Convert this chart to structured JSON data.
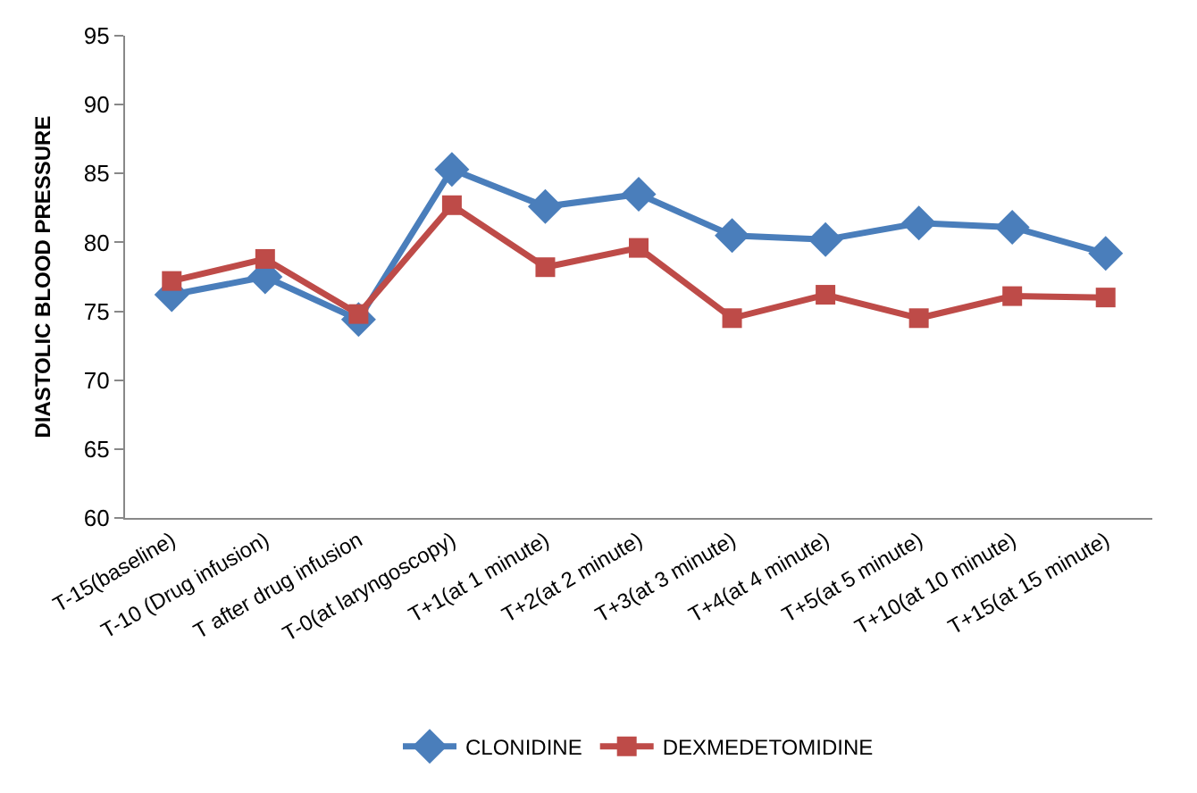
{
  "chart_data": {
    "type": "line",
    "ylabel": "DIASTOLIC BLOOD PRESSURE",
    "categories": [
      "T-15(baseline)",
      "T-10 (Drug infusion)",
      "T after drug infusion",
      "T-0(at laryngoscopy)",
      "T+1(at 1 minute)",
      "T+2(at 2 minute)",
      "T+3(at 3 minute)",
      "T+4(at 4 minute)",
      "T+5(at 5 minute)",
      "T+10(at 10 minute)",
      "T+15(at 15 minute)"
    ],
    "series": [
      {
        "name": "CLONIDINE",
        "color": "#4a7ebb",
        "marker": "diamond",
        "values": [
          76.2,
          77.5,
          74.4,
          85.3,
          82.6,
          83.5,
          80.5,
          80.2,
          81.4,
          81.1,
          79.2
        ]
      },
      {
        "name": "DEXMEDETOMIDINE",
        "color": "#be4b48",
        "marker": "square",
        "values": [
          77.2,
          78.8,
          74.8,
          82.7,
          78.2,
          79.6,
          74.5,
          76.2,
          74.5,
          76.1,
          76.0
        ]
      }
    ],
    "ylim": [
      60,
      95
    ],
    "yticks": [
      60,
      65,
      70,
      75,
      80,
      85,
      90,
      95
    ],
    "grid": false,
    "legend": "bottom",
    "line_style": "solid"
  }
}
